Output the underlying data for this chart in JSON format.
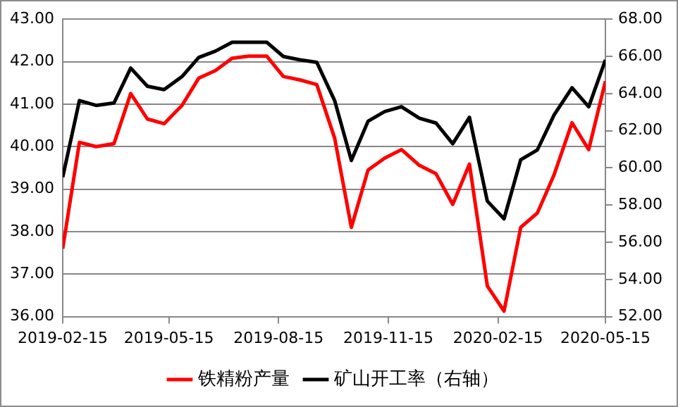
{
  "chart_data": {
    "type": "line",
    "x": [
      "2019-02-15",
      "2019-03-01",
      "2019-03-15",
      "2019-03-30",
      "2019-04-13",
      "2019-04-27",
      "2019-05-11",
      "2019-05-26",
      "2019-06-09",
      "2019-06-23",
      "2019-07-07",
      "2019-07-21",
      "2019-08-05",
      "2019-08-19",
      "2019-09-02",
      "2019-09-16",
      "2019-10-01",
      "2019-10-15",
      "2019-10-29",
      "2019-11-12",
      "2019-11-26",
      "2019-12-11",
      "2019-12-25",
      "2020-01-08",
      "2020-01-22",
      "2020-02-06",
      "2020-02-20",
      "2020-03-05",
      "2020-03-19",
      "2020-04-02",
      "2020-04-17",
      "2020-05-01",
      "2020-05-15"
    ],
    "series": [
      {
        "name": "铁精粉产量",
        "color": "#ff0000",
        "values": [
          37.6,
          40.1,
          40.0,
          40.07,
          41.25,
          40.65,
          40.54,
          40.97,
          41.61,
          41.79,
          42.08,
          42.13,
          42.13,
          41.65,
          41.57,
          41.46,
          40.2,
          38.1,
          39.45,
          39.73,
          39.93,
          39.56,
          39.36,
          38.64,
          39.59,
          36.72,
          36.13,
          38.1,
          38.44,
          39.34,
          40.56,
          39.93,
          41.54
        ]
      },
      {
        "name": "矿山开工率（右轴）",
        "color": "#000000",
        "axis": "y2",
        "values": [
          59.5,
          63.62,
          63.36,
          63.49,
          65.37,
          64.39,
          64.21,
          64.91,
          65.94,
          66.28,
          66.76,
          66.76,
          66.76,
          65.99,
          65.81,
          65.68,
          63.62,
          60.4,
          62.51,
          63.03,
          63.29,
          62.67,
          62.41,
          61.3,
          62.72,
          58.21,
          57.26,
          60.44,
          60.97,
          62.85,
          64.31,
          63.29,
          65.81
        ]
      }
    ],
    "xlim": [
      "2019-02-15",
      "2020-05-15"
    ],
    "xticks": [
      "2019-02-15",
      "2019-05-15",
      "2019-08-15",
      "2019-11-15",
      "2020-02-15",
      "2020-05-15"
    ],
    "ylim": [
      36,
      43
    ],
    "yticks": [
      {
        "value": 36,
        "label": "36.00"
      },
      {
        "value": 37,
        "label": "37.00"
      },
      {
        "value": 38,
        "label": "38.00"
      },
      {
        "value": 39,
        "label": "39.00"
      },
      {
        "value": 40,
        "label": "40.00"
      },
      {
        "value": 41,
        "label": "41.00"
      },
      {
        "value": 42,
        "label": "42.00"
      },
      {
        "value": 43,
        "label": "43.00"
      }
    ],
    "y2lim": [
      52,
      68
    ],
    "y2ticks": [
      {
        "value": 52,
        "label": "52.00"
      },
      {
        "value": 54,
        "label": "54.00"
      },
      {
        "value": 56,
        "label": "56.00"
      },
      {
        "value": 58,
        "label": "58.00"
      },
      {
        "value": 60,
        "label": "60.00"
      },
      {
        "value": 62,
        "label": "62.00"
      },
      {
        "value": 64,
        "label": "64.00"
      },
      {
        "value": 66,
        "label": "66.00"
      },
      {
        "value": 68,
        "label": "68.00"
      }
    ],
    "grid": "y",
    "legend": "bottom",
    "marker": "none",
    "line_style": "solid"
  }
}
